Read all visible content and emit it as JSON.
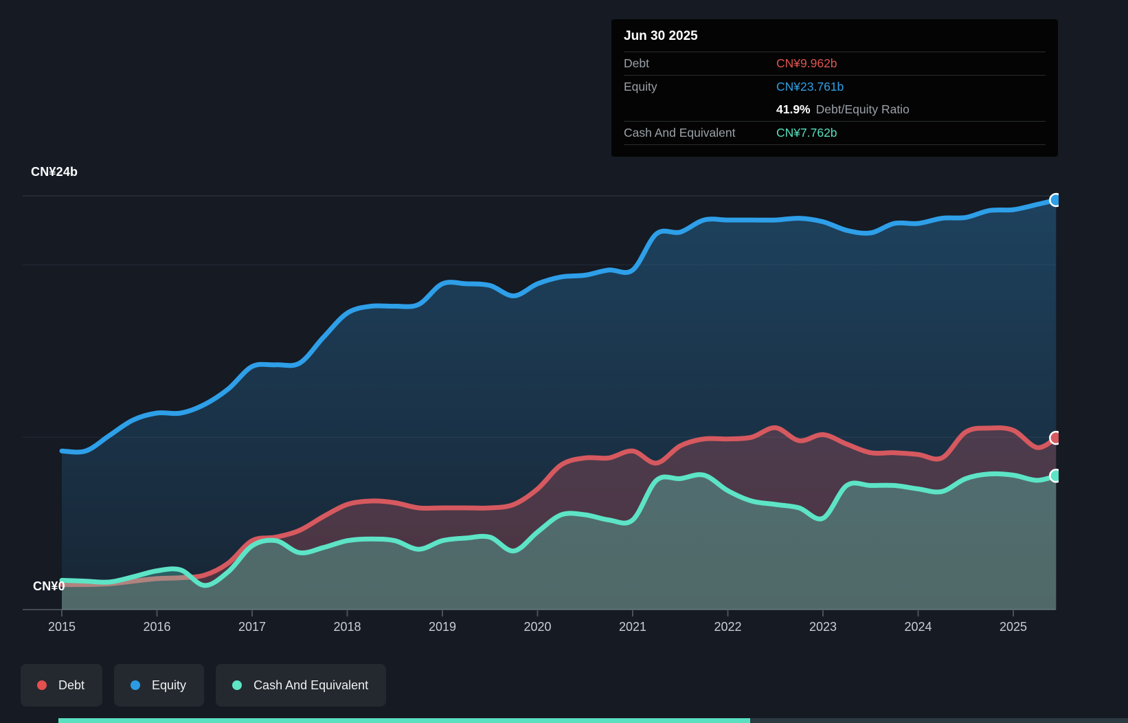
{
  "axis": {
    "y_top_label": "CN¥24b",
    "y_zero_label": "CN¥0",
    "years": [
      "2015",
      "2016",
      "2017",
      "2018",
      "2019",
      "2020",
      "2021",
      "2022",
      "2023",
      "2024",
      "2025"
    ]
  },
  "tooltip": {
    "date": "Jun 30 2025",
    "debt_label": "Debt",
    "debt_value": "CN¥9.962b",
    "equity_label": "Equity",
    "equity_value": "CN¥23.761b",
    "ratio_value": "41.9%",
    "ratio_label": "Debt/Equity Ratio",
    "cash_label": "Cash And Equivalent",
    "cash_value": "CN¥7.762b"
  },
  "legend": [
    {
      "label": "Debt",
      "color": "#e3504f"
    },
    {
      "label": "Equity",
      "color": "#2d9be4"
    },
    {
      "label": "Cash And Equivalent",
      "color": "#5fe4c5"
    }
  ],
  "chart_data": {
    "type": "area",
    "unit": "CN¥ billions",
    "ylim": [
      0,
      24
    ],
    "gridlines_b": [
      24,
      20,
      10,
      0
    ],
    "x_ticks": [
      2015,
      2016,
      2017,
      2018,
      2019,
      2020,
      2021,
      2022,
      2023,
      2024,
      2025
    ],
    "x": [
      2015.0,
      2015.25,
      2015.5,
      2015.75,
      2016.0,
      2016.25,
      2016.5,
      2016.75,
      2017.0,
      2017.25,
      2017.5,
      2017.75,
      2018.0,
      2018.25,
      2018.5,
      2018.75,
      2019.0,
      2019.25,
      2019.5,
      2019.75,
      2020.0,
      2020.25,
      2020.5,
      2020.75,
      2021.0,
      2021.25,
      2021.5,
      2021.75,
      2022.0,
      2022.25,
      2022.5,
      2022.75,
      2023.0,
      2023.25,
      2023.5,
      2023.75,
      2024.0,
      2024.25,
      2024.5,
      2024.75,
      2025.0,
      2025.25,
      2025.45
    ],
    "series": [
      {
        "name": "Debt",
        "color": "#d6595f",
        "fill": "rgba(214,89,95,0.27)",
        "values": [
          1.45,
          1.45,
          1.5,
          1.65,
          1.8,
          1.85,
          2.0,
          2.7,
          4.0,
          4.2,
          4.6,
          5.4,
          6.1,
          6.3,
          6.2,
          5.9,
          5.9,
          5.9,
          5.9,
          6.1,
          7.0,
          8.4,
          8.8,
          8.8,
          9.2,
          8.5,
          9.5,
          9.9,
          9.9,
          10.0,
          10.55,
          9.8,
          10.15,
          9.6,
          9.1,
          9.1,
          9.0,
          8.8,
          10.3,
          10.53,
          10.4,
          9.4,
          9.962
        ]
      },
      {
        "name": "Equity",
        "color": "#2e9fe8",
        "fill": "gradient",
        "values": [
          9.2,
          9.2,
          10.1,
          11.0,
          11.4,
          11.4,
          11.9,
          12.8,
          14.1,
          14.2,
          14.3,
          15.8,
          17.2,
          17.6,
          17.6,
          17.7,
          18.9,
          18.9,
          18.8,
          18.2,
          18.9,
          19.3,
          19.4,
          19.7,
          19.7,
          21.8,
          21.9,
          22.6,
          22.6,
          22.6,
          22.6,
          22.7,
          22.5,
          22.0,
          21.85,
          22.4,
          22.4,
          22.7,
          22.75,
          23.15,
          23.2,
          23.5,
          23.761
        ]
      },
      {
        "name": "Cash And Equivalent",
        "color": "#5de4c6",
        "fill": "rgba(93,228,198,0.30)",
        "values": [
          1.7,
          1.65,
          1.6,
          1.9,
          2.25,
          2.3,
          1.4,
          2.2,
          3.7,
          4.0,
          3.3,
          3.6,
          4.0,
          4.1,
          4.0,
          3.5,
          4.0,
          4.15,
          4.2,
          3.4,
          4.5,
          5.5,
          5.5,
          5.2,
          5.2,
          7.5,
          7.6,
          7.8,
          6.9,
          6.3,
          6.1,
          5.9,
          5.3,
          7.2,
          7.2,
          7.2,
          7.0,
          6.85,
          7.6,
          7.87,
          7.8,
          7.5,
          7.762
        ]
      }
    ],
    "final_values": {
      "Debt": 9.962,
      "Equity": 23.761,
      "Cash And Equivalent": 7.762
    }
  }
}
